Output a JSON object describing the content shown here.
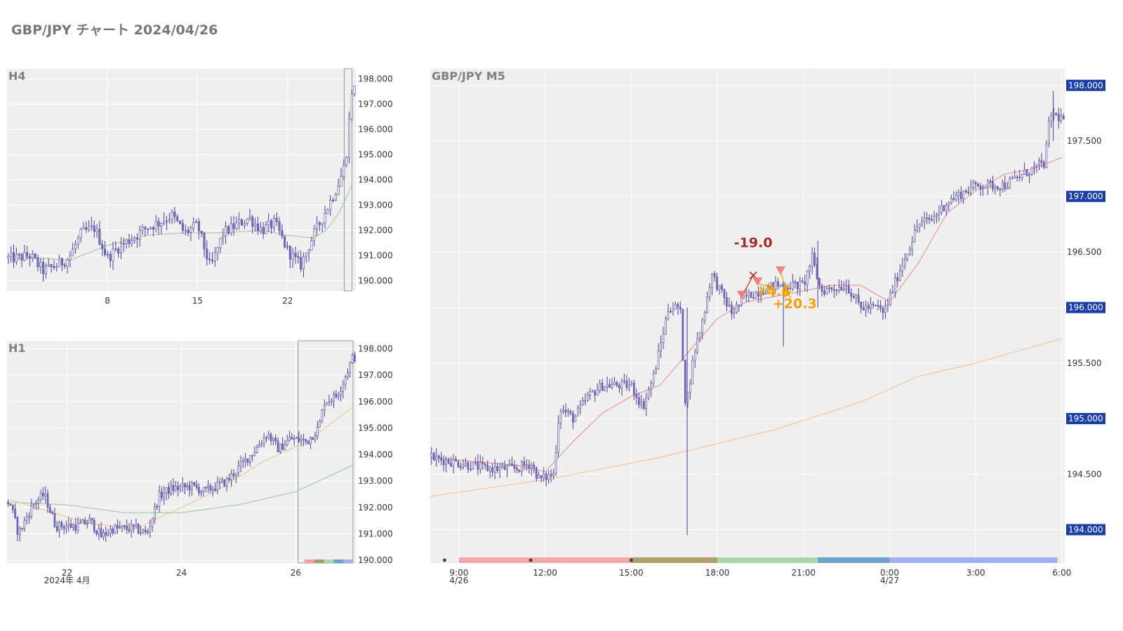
{
  "title": "GBP/JPY チャート 2024/04/26",
  "colors": {
    "plot_bg": "#efefef",
    "grid": "#ffffff",
    "candle": "#7b74c6",
    "candle_edge": "#4a3f9a",
    "ma_green": "#8fc79d",
    "ma_orange": "#f0c08a",
    "ma_red": "#e88a8a",
    "sell_marker": "#f08080",
    "loss_text": "#a52a2a",
    "profit_text": "#f0a000",
    "label_box": "#1a3fa8",
    "text_grey": "#808080"
  },
  "chart_data": [
    {
      "panel": "h4",
      "type": "candlestick",
      "title": "H4",
      "x_tick_labels": [
        "8",
        "15",
        "22"
      ],
      "y_tick_labels": [
        "198.000",
        "197.000",
        "196.000",
        "195.000",
        "194.000",
        "193.000",
        "192.000",
        "191.000",
        "190.000"
      ],
      "ylim": [
        189.6,
        198.4
      ],
      "xlim_days": [
        "2024-04-01",
        "2024-04-27"
      ],
      "close_path": [
        {
          "day": 1.0,
          "price": 190.9
        },
        {
          "day": 2.0,
          "price": 191.0
        },
        {
          "day": 3.0,
          "price": 190.4
        },
        {
          "day": 4.0,
          "price": 190.6
        },
        {
          "day": 5.0,
          "price": 190.9
        },
        {
          "day": 6.0,
          "price": 191.9
        },
        {
          "day": 7.0,
          "price": 192.1
        },
        {
          "day": 8.0,
          "price": 190.9
        },
        {
          "day": 9.0,
          "price": 191.4
        },
        {
          "day": 10.0,
          "price": 191.7
        },
        {
          "day": 11.0,
          "price": 192.1
        },
        {
          "day": 12.0,
          "price": 192.3
        },
        {
          "day": 13.0,
          "price": 192.6
        },
        {
          "day": 14.0,
          "price": 191.9
        },
        {
          "day": 15.0,
          "price": 192.2
        },
        {
          "day": 16.0,
          "price": 190.5
        },
        {
          "day": 17.0,
          "price": 191.9
        },
        {
          "day": 18.0,
          "price": 192.2
        },
        {
          "day": 19.0,
          "price": 192.5
        },
        {
          "day": 20.0,
          "price": 192.0
        },
        {
          "day": 21.0,
          "price": 192.3
        },
        {
          "day": 22.0,
          "price": 191.2
        },
        {
          "day": 23.0,
          "price": 190.6
        },
        {
          "day": 24.0,
          "price": 191.8
        },
        {
          "day": 25.0,
          "price": 192.8
        },
        {
          "day": 26.0,
          "price": 193.9
        },
        {
          "day": 26.5,
          "price": 194.7
        },
        {
          "day": 27.0,
          "price": 197.6
        }
      ],
      "ma_green": [
        {
          "day": 1.0,
          "price": 190.9
        },
        {
          "day": 3.0,
          "price": 190.9
        },
        {
          "day": 5.0,
          "price": 190.8
        },
        {
          "day": 8.0,
          "price": 191.4
        },
        {
          "day": 11.0,
          "price": 191.8
        },
        {
          "day": 14.0,
          "price": 191.9
        },
        {
          "day": 17.0,
          "price": 191.9
        },
        {
          "day": 20.0,
          "price": 192.0
        },
        {
          "day": 22.0,
          "price": 191.8
        },
        {
          "day": 24.0,
          "price": 191.7
        },
        {
          "day": 25.0,
          "price": 192.0
        },
        {
          "day": 26.0,
          "price": 192.7
        },
        {
          "day": 27.0,
          "price": 193.8
        }
      ],
      "highlight_range_days": [
        26.4,
        27.0
      ]
    },
    {
      "panel": "h1",
      "type": "candlestick",
      "title": "H1",
      "x_tick_labels": [
        "22",
        "24",
        "26"
      ],
      "x_secondary_label": "2024年 4月",
      "y_tick_labels": [
        "198.000",
        "197.000",
        "196.000",
        "195.000",
        "194.000",
        "193.000",
        "192.000",
        "191.000",
        "190.000"
      ],
      "ylim": [
        189.9,
        198.3
      ],
      "xlim_days": [
        "2024-04-21",
        "2024-04-27"
      ],
      "close_path": [
        {
          "day": 21.0,
          "price": 192.2
        },
        {
          "day": 21.15,
          "price": 191.0
        },
        {
          "day": 21.4,
          "price": 192.1
        },
        {
          "day": 21.6,
          "price": 192.5
        },
        {
          "day": 21.8,
          "price": 191.3
        },
        {
          "day": 22.2,
          "price": 191.3
        },
        {
          "day": 22.4,
          "price": 191.5
        },
        {
          "day": 22.6,
          "price": 190.9
        },
        {
          "day": 22.8,
          "price": 191.2
        },
        {
          "day": 23.2,
          "price": 191.2
        },
        {
          "day": 23.4,
          "price": 191.0
        },
        {
          "day": 23.6,
          "price": 192.4
        },
        {
          "day": 23.8,
          "price": 192.7
        },
        {
          "day": 24.2,
          "price": 192.8
        },
        {
          "day": 24.4,
          "price": 192.6
        },
        {
          "day": 24.8,
          "price": 193.0
        },
        {
          "day": 25.0,
          "price": 193.5
        },
        {
          "day": 25.3,
          "price": 194.2
        },
        {
          "day": 25.5,
          "price": 194.8
        },
        {
          "day": 25.7,
          "price": 194.2
        },
        {
          "day": 25.9,
          "price": 194.6
        },
        {
          "day": 26.2,
          "price": 194.5
        },
        {
          "day": 26.4,
          "price": 195.0
        },
        {
          "day": 26.5,
          "price": 196.0
        },
        {
          "day": 26.7,
          "price": 196.2
        },
        {
          "day": 26.8,
          "price": 196.6
        },
        {
          "day": 27.0,
          "price": 197.7
        }
      ],
      "ma_green": [
        {
          "day": 21.0,
          "price": 192.2
        },
        {
          "day": 22.0,
          "price": 192.1
        },
        {
          "day": 23.0,
          "price": 191.8
        },
        {
          "day": 24.0,
          "price": 191.8
        },
        {
          "day": 25.0,
          "price": 192.1
        },
        {
          "day": 26.0,
          "price": 192.6
        },
        {
          "day": 27.0,
          "price": 193.6
        }
      ],
      "ma_orange": [
        {
          "day": 21.0,
          "price": 192.3
        },
        {
          "day": 21.6,
          "price": 191.9
        },
        {
          "day": 22.4,
          "price": 191.4
        },
        {
          "day": 23.2,
          "price": 191.2
        },
        {
          "day": 23.8,
          "price": 191.8
        },
        {
          "day": 24.6,
          "price": 192.6
        },
        {
          "day": 25.4,
          "price": 193.7
        },
        {
          "day": 26.2,
          "price": 194.5
        },
        {
          "day": 27.0,
          "price": 195.8
        }
      ],
      "highlight_range_days": [
        26.04,
        27.0
      ],
      "session_bar_colors": [
        "#f4a0a0",
        "#a89b6a",
        "#a8d8a8",
        "#6fa0c8",
        "#a0b0f0"
      ]
    },
    {
      "panel": "m5",
      "type": "candlestick",
      "title": "GBP/JPY M5",
      "x_tick_labels": [
        "9:00",
        "12:00",
        "15:00",
        "18:00",
        "21:00",
        "0:00",
        "3:00",
        "6:00"
      ],
      "x_date_labels": [
        {
          "at": "9:00",
          "text": "4/26"
        },
        {
          "at": "0:00",
          "text": "4/27"
        }
      ],
      "y_tick_labels": [
        "198.000",
        "197.500",
        "197.000",
        "196.500",
        "196.000",
        "195.500",
        "195.000",
        "194.500",
        "194.000"
      ],
      "y_highlight_labels": [
        "198.000",
        "197.000",
        "196.000",
        "195.000",
        "194.000"
      ],
      "ylim": [
        193.7,
        198.15
      ],
      "xlim_hours": [
        8.0,
        30.0
      ],
      "close_path": [
        {
          "hour": 8.0,
          "price": 194.65
        },
        {
          "hour": 9.0,
          "price": 194.6
        },
        {
          "hour": 10.0,
          "price": 194.55
        },
        {
          "hour": 11.0,
          "price": 194.55
        },
        {
          "hour": 11.5,
          "price": 194.6
        },
        {
          "hour": 11.8,
          "price": 194.45
        },
        {
          "hour": 12.3,
          "price": 194.5
        },
        {
          "hour": 12.5,
          "price": 195.1
        },
        {
          "hour": 13.0,
          "price": 195.0
        },
        {
          "hour": 13.5,
          "price": 195.2
        },
        {
          "hour": 14.0,
          "price": 195.3
        },
        {
          "hour": 15.0,
          "price": 195.3
        },
        {
          "hour": 15.4,
          "price": 195.1
        },
        {
          "hour": 15.8,
          "price": 195.4
        },
        {
          "hour": 16.3,
          "price": 196.0
        },
        {
          "hour": 16.7,
          "price": 196.0
        },
        {
          "hour": 16.9,
          "price": 195.1
        },
        {
          "hour": 17.2,
          "price": 195.6
        },
        {
          "hour": 17.5,
          "price": 195.9
        },
        {
          "hour": 17.8,
          "price": 196.3
        },
        {
          "hour": 18.0,
          "price": 196.2
        },
        {
          "hour": 18.5,
          "price": 195.95
        },
        {
          "hour": 19.0,
          "price": 196.1
        },
        {
          "hour": 19.5,
          "price": 196.15
        },
        {
          "hour": 20.0,
          "price": 196.2
        },
        {
          "hour": 21.0,
          "price": 196.2
        },
        {
          "hour": 21.3,
          "price": 196.45
        },
        {
          "hour": 21.6,
          "price": 196.15
        },
        {
          "hour": 22.5,
          "price": 196.2
        },
        {
          "hour": 23.0,
          "price": 196.0
        },
        {
          "hour": 23.6,
          "price": 196.0
        },
        {
          "hour": 23.8,
          "price": 195.95
        },
        {
          "hour": 24.3,
          "price": 196.3
        },
        {
          "hour": 25.0,
          "price": 196.75
        },
        {
          "hour": 25.5,
          "price": 196.8
        },
        {
          "hour": 26.0,
          "price": 196.95
        },
        {
          "hour": 27.0,
          "price": 197.1
        },
        {
          "hour": 28.0,
          "price": 197.1
        },
        {
          "hour": 29.0,
          "price": 197.25
        },
        {
          "hour": 29.4,
          "price": 197.3
        },
        {
          "hour": 29.6,
          "price": 197.75
        },
        {
          "hour": 30.0,
          "price": 197.7
        }
      ],
      "spikes": [
        {
          "hour": 16.95,
          "low": 193.95,
          "high": 196.0
        },
        {
          "hour": 20.3,
          "low": 195.65,
          "high": 196.2
        },
        {
          "hour": 21.5,
          "low": 196.0,
          "high": 196.6
        },
        {
          "hour": 29.7,
          "low": 197.5,
          "high": 197.95
        }
      ],
      "ma_red": [
        {
          "hour": 8.0,
          "price": 194.65
        },
        {
          "hour": 11.0,
          "price": 194.58
        },
        {
          "hour": 12.0,
          "price": 194.52
        },
        {
          "hour": 13.0,
          "price": 194.8
        },
        {
          "hour": 14.0,
          "price": 195.05
        },
        {
          "hour": 15.0,
          "price": 195.2
        },
        {
          "hour": 16.0,
          "price": 195.3
        },
        {
          "hour": 17.0,
          "price": 195.6
        },
        {
          "hour": 18.0,
          "price": 195.9
        },
        {
          "hour": 19.0,
          "price": 196.05
        },
        {
          "hour": 20.0,
          "price": 196.1
        },
        {
          "hour": 21.0,
          "price": 196.15
        },
        {
          "hour": 22.0,
          "price": 196.2
        },
        {
          "hour": 23.0,
          "price": 196.2
        },
        {
          "hour": 24.0,
          "price": 196.05
        },
        {
          "hour": 25.0,
          "price": 196.4
        },
        {
          "hour": 26.0,
          "price": 196.85
        },
        {
          "hour": 27.0,
          "price": 197.05
        },
        {
          "hour": 28.0,
          "price": 197.2
        },
        {
          "hour": 29.0,
          "price": 197.25
        },
        {
          "hour": 30.0,
          "price": 197.35
        }
      ],
      "ma_orange": [
        {
          "hour": 8.0,
          "price": 194.3
        },
        {
          "hour": 12.0,
          "price": 194.45
        },
        {
          "hour": 16.0,
          "price": 194.65
        },
        {
          "hour": 20.0,
          "price": 194.9
        },
        {
          "hour": 23.0,
          "price": 195.15
        },
        {
          "hour": 25.0,
          "price": 195.38
        },
        {
          "hour": 27.0,
          "price": 195.5
        },
        {
          "hour": 30.0,
          "price": 195.72
        }
      ],
      "trades": [
        {
          "entry_hour": 18.85,
          "entry_price": 196.1,
          "exit_hour": 19.25,
          "exit_price": 196.29,
          "result": "-19.0",
          "kind": "loss"
        },
        {
          "entry_hour": 19.4,
          "entry_price": 196.22,
          "exit_hour": 19.8,
          "exit_price": 196.18,
          "result": "+4.6",
          "kind": "profit"
        },
        {
          "entry_hour": 20.2,
          "entry_price": 196.32,
          "exit_hour": 20.45,
          "exit_price": 196.12,
          "result": "+20.3",
          "kind": "profit"
        }
      ],
      "sell_markers": [
        {
          "hour": 18.85,
          "price": 196.1
        },
        {
          "hour": 19.4,
          "price": 196.22
        },
        {
          "hour": 20.2,
          "price": 196.32
        }
      ],
      "sessions": [
        {
          "from": 9.0,
          "to": 15.0,
          "color": "#f4a8a8"
        },
        {
          "from": 15.0,
          "to": 18.0,
          "color": "#b0a070"
        },
        {
          "from": 18.0,
          "to": 21.5,
          "color": "#a8d8a8"
        },
        {
          "from": 21.5,
          "to": 24.0,
          "color": "#6fa0c8"
        },
        {
          "from": 24.0,
          "to": 29.85,
          "color": "#a0b0f0"
        }
      ],
      "session_dots": [
        9.0,
        12.0,
        15.5
      ]
    }
  ]
}
